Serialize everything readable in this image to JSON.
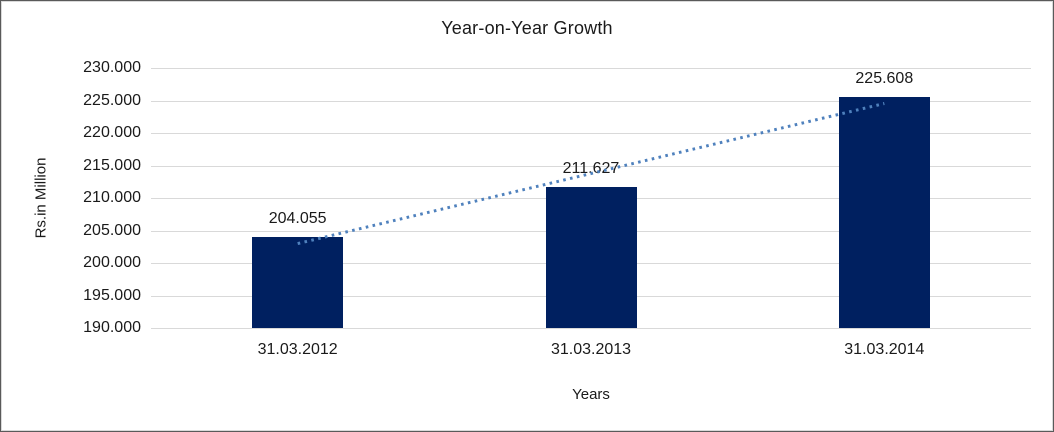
{
  "frame": {
    "background": "#ffffff",
    "border_color": "#5a5a5a",
    "inner_edge_color": "#d9d9d9"
  },
  "chart_data": {
    "type": "bar",
    "title": "Year-on-Year Growth",
    "xlabel": "Years",
    "ylabel": "Rs.in Million",
    "categories": [
      "31.03.2012",
      "31.03.2013",
      "31.03.2014"
    ],
    "values": [
      204.055,
      211.627,
      225.608
    ],
    "data_labels": [
      "204.055",
      "211.627",
      "225.608"
    ],
    "ylim": [
      190,
      230
    ],
    "ytick_interval": 5,
    "ytick_labels_top_to_bottom": [
      "230.000",
      "225.000",
      "220.000",
      "215.000",
      "210.000",
      "205.000",
      "200.000",
      "195.000",
      "190.000"
    ],
    "grid": true,
    "legend": "none",
    "trendline": {
      "type": "linear",
      "line_style": "dotted",
      "color": "#4f81bd"
    },
    "colors": {
      "bar": "#002060",
      "gridline": "#d9d9d9",
      "text": "#1a1a1a",
      "trendline": "#4f81bd"
    }
  }
}
